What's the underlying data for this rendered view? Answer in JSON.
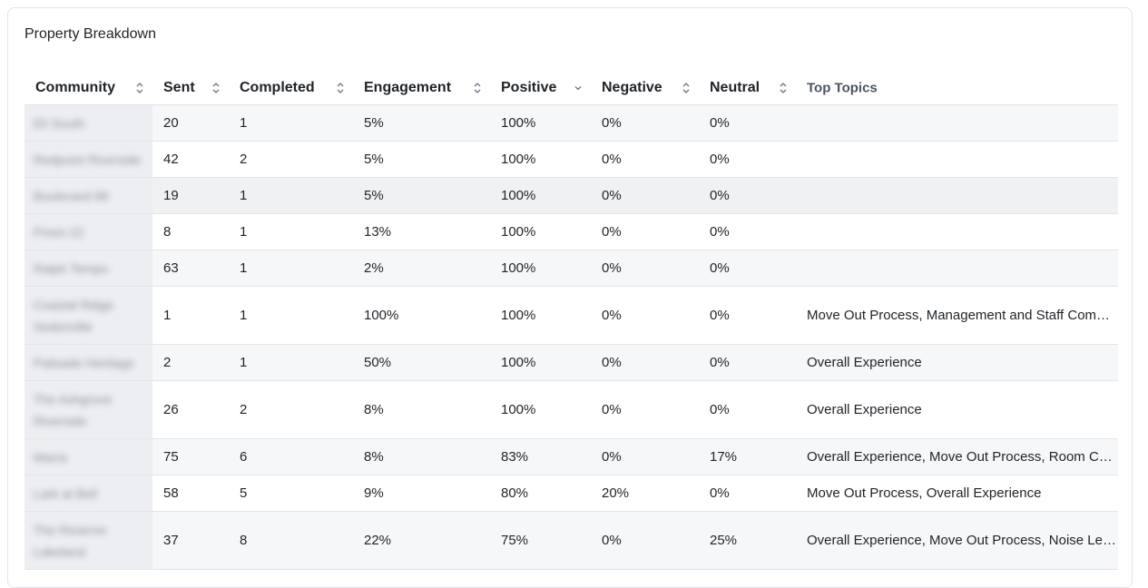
{
  "card": {
    "title": "Property Breakdown"
  },
  "table": {
    "columns": [
      {
        "key": "community",
        "label": "Community",
        "sortable": true,
        "sort": "none"
      },
      {
        "key": "sent",
        "label": "Sent",
        "sortable": true,
        "sort": "none"
      },
      {
        "key": "completed",
        "label": "Completed",
        "sortable": true,
        "sort": "none"
      },
      {
        "key": "engagement",
        "label": "Engagement",
        "sortable": true,
        "sort": "none"
      },
      {
        "key": "positive",
        "label": "Positive",
        "sortable": true,
        "sort": "desc"
      },
      {
        "key": "negative",
        "label": "Negative",
        "sortable": true,
        "sort": "none"
      },
      {
        "key": "neutral",
        "label": "Neutral",
        "sortable": true,
        "sort": "none"
      },
      {
        "key": "topics",
        "label": "Top Topics",
        "sortable": false,
        "sort": "none"
      }
    ],
    "rows": [
      {
        "community": "Eli South",
        "sent": "20",
        "completed": "1",
        "engagement": "5%",
        "positive": "100%",
        "negative": "0%",
        "neutral": "0%",
        "topics": ""
      },
      {
        "community": "Redpoint Riverside",
        "sent": "42",
        "completed": "2",
        "engagement": "5%",
        "positive": "100%",
        "negative": "0%",
        "neutral": "0%",
        "topics": ""
      },
      {
        "community": "Boulevard 88",
        "sent": "19",
        "completed": "1",
        "engagement": "5%",
        "positive": "100%",
        "negative": "0%",
        "neutral": "0%",
        "topics": ""
      },
      {
        "community": "Prism 22",
        "sent": "8",
        "completed": "1",
        "engagement": "13%",
        "positive": "100%",
        "negative": "0%",
        "neutral": "0%",
        "topics": ""
      },
      {
        "community": "Ralph Tempo",
        "sent": "63",
        "completed": "1",
        "engagement": "2%",
        "positive": "100%",
        "negative": "0%",
        "neutral": "0%",
        "topics": ""
      },
      {
        "community": "Coastal Ridge Sedonville",
        "sent": "1",
        "completed": "1",
        "engagement": "100%",
        "positive": "100%",
        "negative": "0%",
        "neutral": "0%",
        "topics": "Move Out Process, Management and Staff Communication"
      },
      {
        "community": "Palisade Heritage",
        "sent": "2",
        "completed": "1",
        "engagement": "50%",
        "positive": "100%",
        "negative": "0%",
        "neutral": "0%",
        "topics": "Overall Experience"
      },
      {
        "community": "The Ashgrove Riverside",
        "sent": "26",
        "completed": "2",
        "engagement": "8%",
        "positive": "100%",
        "negative": "0%",
        "neutral": "0%",
        "topics": "Overall Experience"
      },
      {
        "community": "Marra",
        "sent": "75",
        "completed": "6",
        "engagement": "8%",
        "positive": "83%",
        "negative": "0%",
        "neutral": "17%",
        "topics": "Overall Experience, Move Out Process, Room Condition"
      },
      {
        "community": "Lark at Bell",
        "sent": "58",
        "completed": "5",
        "engagement": "9%",
        "positive": "80%",
        "negative": "20%",
        "neutral": "0%",
        "topics": "Move Out Process, Overall Experience"
      },
      {
        "community": "The Reserve Lakeland",
        "sent": "37",
        "completed": "8",
        "engagement": "22%",
        "positive": "75%",
        "negative": "0%",
        "neutral": "25%",
        "topics": "Overall Experience, Move Out Process, Noise Levels"
      }
    ]
  }
}
